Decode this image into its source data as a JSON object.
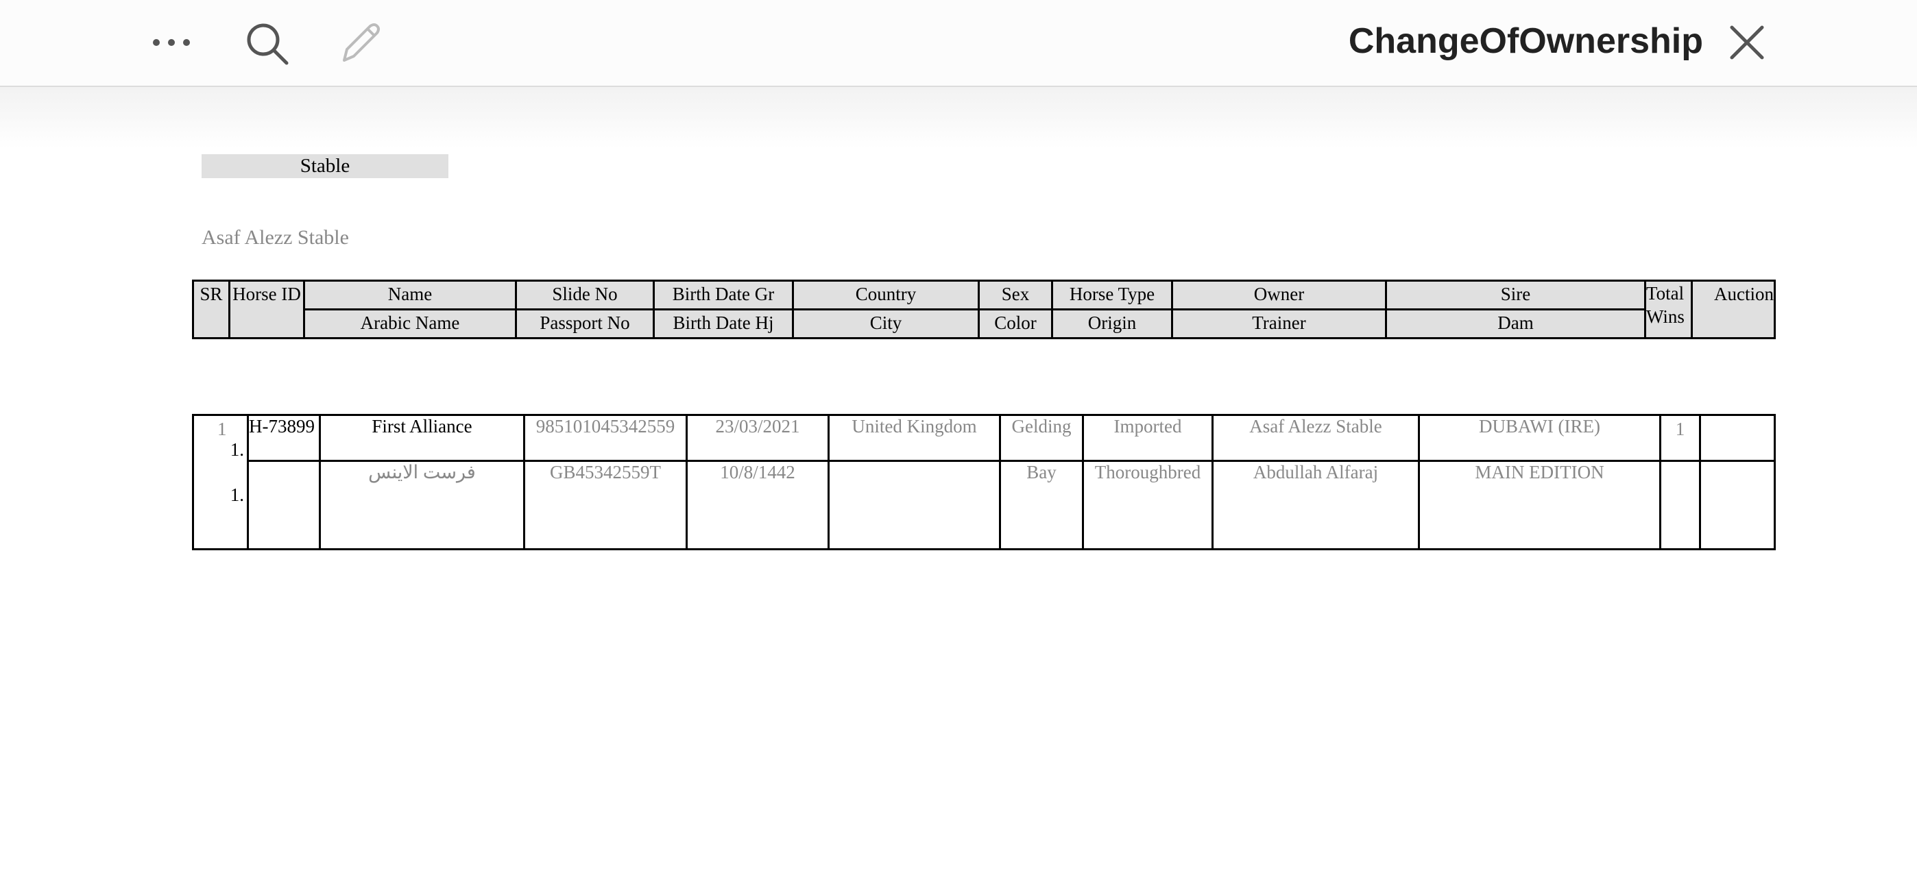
{
  "toolbar": {
    "title": "ChangeOfOwnership",
    "icons": [
      "more-icon",
      "search-icon",
      "pencil-icon",
      "close-icon"
    ]
  },
  "stable_label": "Stable",
  "stable_name": "Asaf Alezz Stable",
  "header": {
    "sr": "SR",
    "horse_id": "Horse ID",
    "name": "Name",
    "arabic_name": "Arabic Name",
    "slide_no": "Slide No",
    "passport_no": "Passport No",
    "birth_gr": "Birth Date Gr",
    "birth_hj": "Birth Date Hj",
    "country": "Country",
    "city": "City",
    "sex": "Sex",
    "color": "Color",
    "horse_type": "Horse Type",
    "origin": "Origin",
    "owner": "Owner",
    "trainer": "Trainer",
    "sire": "Sire",
    "dam": "Dam",
    "total": "Total",
    "wins": "Wins",
    "auction": "Auction"
  },
  "rows": [
    {
      "sr": "1",
      "num1": "1.",
      "num2": "1.",
      "horse_id": "H-73899",
      "name": "First Alliance",
      "arabic_name": "فرست الاينس",
      "slide_no": "985101045342559",
      "passport_no": "GB45342559T",
      "birth_gr": "23/03/2021",
      "birth_hj": "10/8/1442",
      "country": "United Kingdom",
      "city": "",
      "sex": "Gelding",
      "color": "Bay",
      "horse_type": "Imported",
      "origin": "Thoroughbred",
      "owner": "Asaf Alezz Stable",
      "trainer": "Abdullah Alfaraj",
      "sire": "DUBAWI (IRE)",
      "dam": "MAIN EDITION",
      "total_wins": "1",
      "auction": ""
    }
  ]
}
